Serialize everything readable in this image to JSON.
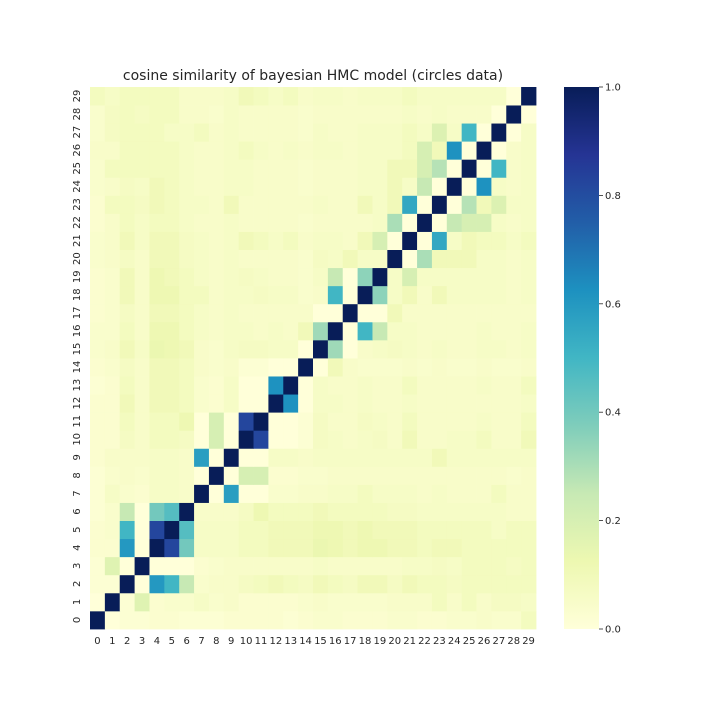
{
  "chart_data": {
    "type": "heatmap",
    "title": "cosine similarity of bayesian HMC model (circles data)",
    "xlabel": "",
    "ylabel": "",
    "x_tick_labels": [
      "0",
      "1",
      "2",
      "3",
      "4",
      "5",
      "6",
      "7",
      "8",
      "9",
      "10",
      "11",
      "12",
      "13",
      "14",
      "15",
      "16",
      "17",
      "18",
      "19",
      "20",
      "21",
      "22",
      "23",
      "24",
      "25",
      "26",
      "27",
      "28",
      "29"
    ],
    "y_tick_labels": [
      "0",
      "1",
      "2",
      "3",
      "4",
      "5",
      "6",
      "7",
      "8",
      "9",
      "10",
      "11",
      "12",
      "13",
      "14",
      "15",
      "16",
      "17",
      "18",
      "19",
      "20",
      "21",
      "22",
      "23",
      "24",
      "25",
      "26",
      "27",
      "28",
      "29"
    ],
    "y_axis_origin": "bottom",
    "colormap": "YlGnBu",
    "vmin": 0.0,
    "vmax": 1.0,
    "colorbar_ticks": [
      "0.0",
      "0.2",
      "0.4",
      "0.6",
      "0.8",
      "1.0"
    ],
    "matrix": [
      [
        1.0,
        0.0,
        0.02,
        0.02,
        0.03,
        0.03,
        0.02,
        0.02,
        0.02,
        0.03,
        0.03,
        0.03,
        0.03,
        0.02,
        0.03,
        0.04,
        0.04,
        0.03,
        0.03,
        0.03,
        0.04,
        0.04,
        0.03,
        0.03,
        0.04,
        0.04,
        0.05,
        0.04,
        0.04,
        0.08
      ],
      [
        0.0,
        1.0,
        0.02,
        0.17,
        0.03,
        0.04,
        0.04,
        0.06,
        0.04,
        0.05,
        0.03,
        0.03,
        0.03,
        0.03,
        0.04,
        0.05,
        0.04,
        0.04,
        0.04,
        0.04,
        0.05,
        0.05,
        0.05,
        0.08,
        0.05,
        0.08,
        0.05,
        0.07,
        0.07,
        0.06
      ],
      [
        0.02,
        0.02,
        1.0,
        0.0,
        0.6,
        0.5,
        0.25,
        0.04,
        0.05,
        0.05,
        0.07,
        0.08,
        0.1,
        0.08,
        0.07,
        0.1,
        0.08,
        0.07,
        0.1,
        0.1,
        0.07,
        0.1,
        0.08,
        0.08,
        0.07,
        0.08,
        0.08,
        0.08,
        0.08,
        0.08
      ],
      [
        0.02,
        0.17,
        0.0,
        1.0,
        0.0,
        0.0,
        0.0,
        0.03,
        0.04,
        0.05,
        0.05,
        0.05,
        0.05,
        0.05,
        0.05,
        0.06,
        0.05,
        0.05,
        0.05,
        0.05,
        0.05,
        0.06,
        0.06,
        0.07,
        0.06,
        0.08,
        0.08,
        0.08,
        0.07,
        0.08
      ],
      [
        0.03,
        0.03,
        0.6,
        0.0,
        1.0,
        0.82,
        0.4,
        0.06,
        0.06,
        0.06,
        0.08,
        0.08,
        0.1,
        0.1,
        0.1,
        0.13,
        0.12,
        0.1,
        0.12,
        0.12,
        0.1,
        0.1,
        0.08,
        0.1,
        0.1,
        0.08,
        0.08,
        0.08,
        0.08,
        0.08
      ],
      [
        0.03,
        0.04,
        0.5,
        0.0,
        0.82,
        1.0,
        0.46,
        0.06,
        0.06,
        0.06,
        0.08,
        0.08,
        0.1,
        0.1,
        0.1,
        0.12,
        0.12,
        0.1,
        0.12,
        0.1,
        0.1,
        0.1,
        0.08,
        0.08,
        0.08,
        0.08,
        0.08,
        0.06,
        0.08,
        0.08
      ],
      [
        0.02,
        0.04,
        0.25,
        0.0,
        0.4,
        0.46,
        1.0,
        0.05,
        0.05,
        0.05,
        0.07,
        0.12,
        0.08,
        0.08,
        0.08,
        0.1,
        0.08,
        0.08,
        0.08,
        0.08,
        0.07,
        0.07,
        0.06,
        0.06,
        0.06,
        0.06,
        0.06,
        0.06,
        0.05,
        0.05
      ],
      [
        0.02,
        0.06,
        0.04,
        0.03,
        0.06,
        0.06,
        0.05,
        1.0,
        0.0,
        0.58,
        0.0,
        0.0,
        0.04,
        0.04,
        0.05,
        0.05,
        0.06,
        0.06,
        0.08,
        0.06,
        0.06,
        0.06,
        0.05,
        0.06,
        0.05,
        0.05,
        0.05,
        0.08,
        0.05,
        0.05
      ],
      [
        0.02,
        0.04,
        0.05,
        0.04,
        0.06,
        0.06,
        0.05,
        0.0,
        1.0,
        0.0,
        0.2,
        0.2,
        0.03,
        0.03,
        0.04,
        0.04,
        0.05,
        0.05,
        0.05,
        0.05,
        0.05,
        0.05,
        0.05,
        0.05,
        0.05,
        0.05,
        0.05,
        0.05,
        0.04,
        0.05
      ],
      [
        0.03,
        0.05,
        0.05,
        0.05,
        0.06,
        0.06,
        0.05,
        0.58,
        0.0,
        1.0,
        0.0,
        0.0,
        0.06,
        0.06,
        0.05,
        0.06,
        0.06,
        0.06,
        0.06,
        0.06,
        0.06,
        0.06,
        0.06,
        0.1,
        0.06,
        0.06,
        0.06,
        0.06,
        0.06,
        0.06
      ],
      [
        0.03,
        0.03,
        0.07,
        0.05,
        0.08,
        0.08,
        0.07,
        0.0,
        0.2,
        0.0,
        1.0,
        0.82,
        0.0,
        0.0,
        0.02,
        0.07,
        0.06,
        0.05,
        0.06,
        0.07,
        0.05,
        0.1,
        0.05,
        0.05,
        0.06,
        0.06,
        0.08,
        0.05,
        0.05,
        0.1
      ],
      [
        0.03,
        0.03,
        0.08,
        0.05,
        0.08,
        0.08,
        0.12,
        0.0,
        0.2,
        0.0,
        0.82,
        1.0,
        0.0,
        0.0,
        0.02,
        0.07,
        0.05,
        0.05,
        0.07,
        0.06,
        0.05,
        0.08,
        0.05,
        0.05,
        0.05,
        0.05,
        0.06,
        0.05,
        0.05,
        0.08
      ],
      [
        0.03,
        0.03,
        0.1,
        0.05,
        0.1,
        0.1,
        0.08,
        0.04,
        0.03,
        0.06,
        0.0,
        0.0,
        1.0,
        0.62,
        0.0,
        0.06,
        0.06,
        0.05,
        0.06,
        0.05,
        0.05,
        0.06,
        0.05,
        0.05,
        0.05,
        0.05,
        0.05,
        0.05,
        0.05,
        0.06
      ],
      [
        0.02,
        0.03,
        0.08,
        0.05,
        0.1,
        0.1,
        0.08,
        0.04,
        0.03,
        0.06,
        0.0,
        0.0,
        0.62,
        1.0,
        0.0,
        0.06,
        0.05,
        0.05,
        0.06,
        0.05,
        0.05,
        0.08,
        0.05,
        0.05,
        0.05,
        0.05,
        0.06,
        0.05,
        0.05,
        0.08
      ],
      [
        0.03,
        0.04,
        0.07,
        0.05,
        0.1,
        0.1,
        0.08,
        0.05,
        0.04,
        0.05,
        0.02,
        0.02,
        0.0,
        0.0,
        1.0,
        0.0,
        0.1,
        0.05,
        0.04,
        0.04,
        0.04,
        0.05,
        0.04,
        0.05,
        0.04,
        0.04,
        0.05,
        0.04,
        0.04,
        0.05
      ],
      [
        0.04,
        0.05,
        0.1,
        0.06,
        0.13,
        0.12,
        0.1,
        0.05,
        0.04,
        0.06,
        0.07,
        0.07,
        0.06,
        0.06,
        0.0,
        1.0,
        0.32,
        0.0,
        0.05,
        0.06,
        0.07,
        0.06,
        0.05,
        0.06,
        0.05,
        0.05,
        0.06,
        0.06,
        0.05,
        0.06
      ],
      [
        0.04,
        0.04,
        0.08,
        0.05,
        0.12,
        0.12,
        0.08,
        0.06,
        0.05,
        0.06,
        0.06,
        0.05,
        0.06,
        0.05,
        0.1,
        0.32,
        1.0,
        0.0,
        0.5,
        0.25,
        0.06,
        0.06,
        0.05,
        0.05,
        0.05,
        0.05,
        0.06,
        0.05,
        0.05,
        0.06
      ],
      [
        0.03,
        0.04,
        0.07,
        0.05,
        0.1,
        0.1,
        0.08,
        0.06,
        0.05,
        0.06,
        0.05,
        0.05,
        0.05,
        0.05,
        0.05,
        0.0,
        0.0,
        1.0,
        0.0,
        0.0,
        0.1,
        0.05,
        0.05,
        0.05,
        0.05,
        0.05,
        0.05,
        0.05,
        0.05,
        0.05
      ],
      [
        0.03,
        0.04,
        0.1,
        0.05,
        0.12,
        0.12,
        0.08,
        0.08,
        0.05,
        0.06,
        0.06,
        0.07,
        0.06,
        0.06,
        0.04,
        0.05,
        0.5,
        0.0,
        1.0,
        0.35,
        0.06,
        0.1,
        0.05,
        0.1,
        0.06,
        0.06,
        0.06,
        0.06,
        0.05,
        0.06
      ],
      [
        0.03,
        0.04,
        0.1,
        0.05,
        0.12,
        0.1,
        0.08,
        0.06,
        0.05,
        0.06,
        0.07,
        0.06,
        0.05,
        0.05,
        0.04,
        0.06,
        0.25,
        0.0,
        0.35,
        1.0,
        0.06,
        0.2,
        0.06,
        0.06,
        0.06,
        0.06,
        0.06,
        0.06,
        0.05,
        0.06
      ],
      [
        0.04,
        0.05,
        0.07,
        0.05,
        0.1,
        0.1,
        0.07,
        0.06,
        0.05,
        0.06,
        0.05,
        0.05,
        0.05,
        0.05,
        0.04,
        0.07,
        0.06,
        0.1,
        0.06,
        0.06,
        1.0,
        0.0,
        0.3,
        0.1,
        0.1,
        0.1,
        0.06,
        0.06,
        0.05,
        0.06
      ],
      [
        0.04,
        0.05,
        0.1,
        0.06,
        0.1,
        0.1,
        0.07,
        0.06,
        0.05,
        0.06,
        0.1,
        0.08,
        0.06,
        0.08,
        0.05,
        0.06,
        0.06,
        0.05,
        0.1,
        0.2,
        0.0,
        1.0,
        0.0,
        0.55,
        0.06,
        0.1,
        0.08,
        0.08,
        0.06,
        0.08
      ],
      [
        0.03,
        0.05,
        0.08,
        0.06,
        0.08,
        0.08,
        0.06,
        0.05,
        0.05,
        0.06,
        0.05,
        0.05,
        0.05,
        0.05,
        0.04,
        0.05,
        0.05,
        0.05,
        0.05,
        0.06,
        0.3,
        0.0,
        1.0,
        0.0,
        0.25,
        0.2,
        0.2,
        0.06,
        0.05,
        0.06
      ],
      [
        0.03,
        0.08,
        0.08,
        0.07,
        0.1,
        0.08,
        0.06,
        0.06,
        0.05,
        0.1,
        0.05,
        0.05,
        0.05,
        0.05,
        0.05,
        0.06,
        0.05,
        0.05,
        0.1,
        0.06,
        0.1,
        0.55,
        0.0,
        1.0,
        0.0,
        0.28,
        0.1,
        0.18,
        0.06,
        0.06
      ],
      [
        0.04,
        0.05,
        0.07,
        0.06,
        0.1,
        0.08,
        0.06,
        0.05,
        0.05,
        0.06,
        0.06,
        0.05,
        0.05,
        0.05,
        0.04,
        0.05,
        0.05,
        0.05,
        0.06,
        0.06,
        0.1,
        0.06,
        0.25,
        0.0,
        1.0,
        0.0,
        0.62,
        0.06,
        0.05,
        0.06
      ],
      [
        0.04,
        0.08,
        0.08,
        0.08,
        0.08,
        0.08,
        0.06,
        0.05,
        0.05,
        0.06,
        0.06,
        0.05,
        0.05,
        0.05,
        0.04,
        0.05,
        0.05,
        0.05,
        0.06,
        0.06,
        0.1,
        0.1,
        0.2,
        0.28,
        0.0,
        1.0,
        0.0,
        0.5,
        0.05,
        0.06
      ],
      [
        0.05,
        0.05,
        0.08,
        0.08,
        0.08,
        0.08,
        0.06,
        0.05,
        0.05,
        0.06,
        0.08,
        0.06,
        0.05,
        0.06,
        0.05,
        0.06,
        0.06,
        0.05,
        0.06,
        0.06,
        0.06,
        0.08,
        0.2,
        0.1,
        0.62,
        0.0,
        1.0,
        0.0,
        0.05,
        0.06
      ],
      [
        0.04,
        0.07,
        0.08,
        0.08,
        0.08,
        0.06,
        0.06,
        0.08,
        0.05,
        0.06,
        0.05,
        0.05,
        0.05,
        0.05,
        0.04,
        0.06,
        0.05,
        0.05,
        0.06,
        0.06,
        0.06,
        0.08,
        0.06,
        0.18,
        0.06,
        0.5,
        0.0,
        1.0,
        0.0,
        0.06
      ],
      [
        0.04,
        0.07,
        0.08,
        0.07,
        0.08,
        0.08,
        0.05,
        0.05,
        0.04,
        0.06,
        0.05,
        0.05,
        0.05,
        0.05,
        0.04,
        0.05,
        0.05,
        0.05,
        0.05,
        0.05,
        0.05,
        0.06,
        0.05,
        0.06,
        0.05,
        0.05,
        0.05,
        0.0,
        1.0,
        0.0
      ],
      [
        0.08,
        0.06,
        0.08,
        0.08,
        0.08,
        0.08,
        0.05,
        0.05,
        0.05,
        0.06,
        0.1,
        0.08,
        0.06,
        0.08,
        0.05,
        0.06,
        0.06,
        0.05,
        0.06,
        0.06,
        0.06,
        0.08,
        0.06,
        0.06,
        0.06,
        0.06,
        0.06,
        0.06,
        0.0,
        1.0
      ]
    ]
  }
}
